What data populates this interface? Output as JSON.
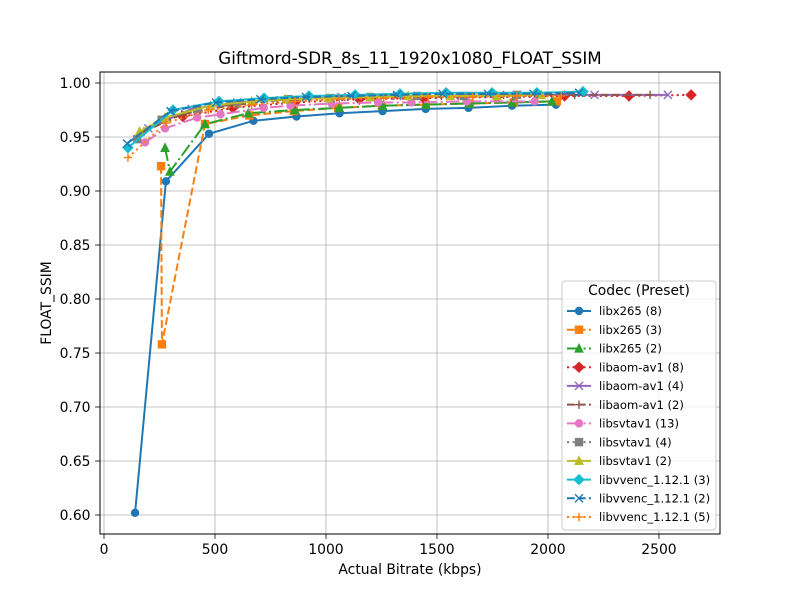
{
  "chart_data": {
    "type": "line",
    "title": "Giftmord-SDR_8s_11_1920x1080_FLOAT_SSIM",
    "xlabel": "Actual Bitrate (kbps)",
    "ylabel": "FLOAT_SSIM",
    "xlim": [
      -18,
      2775
    ],
    "ylim": [
      0.5824,
      1.0102
    ],
    "grid": true,
    "xticks": [
      {
        "value": 0,
        "label": "0"
      },
      {
        "value": 500,
        "label": "500"
      },
      {
        "value": 1000,
        "label": "1000"
      },
      {
        "value": 1500,
        "label": "1500"
      },
      {
        "value": 2000,
        "label": "2000"
      },
      {
        "value": 2500,
        "label": "2500"
      }
    ],
    "yticks": [
      {
        "value": 0.6,
        "label": "0.60"
      },
      {
        "value": 0.65,
        "label": "0.65"
      },
      {
        "value": 0.7,
        "label": "0.70"
      },
      {
        "value": 0.75,
        "label": "0.75"
      },
      {
        "value": 0.8,
        "label": "0.80"
      },
      {
        "value": 0.85,
        "label": "0.85"
      },
      {
        "value": 0.9,
        "label": "0.90"
      },
      {
        "value": 0.95,
        "label": "0.95"
      },
      {
        "value": 1.0,
        "label": "1.00"
      }
    ],
    "legend": {
      "title": "Codec (Preset)",
      "placement": "lower right"
    },
    "series": [
      {
        "name": "libx265 (8)",
        "color": "#1f77b4",
        "linestyle": "solid",
        "marker": "circle",
        "x": [
          140,
          279,
          473,
          673,
          867,
          1061,
          1255,
          1449,
          1642,
          1838,
          2036
        ],
        "y": [
          0.602,
          0.909,
          0.953,
          0.965,
          0.969,
          0.972,
          0.974,
          0.976,
          0.977,
          0.979,
          0.98
        ]
      },
      {
        "name": "libx265 (3)",
        "color": "#ff7f0e",
        "linestyle": "dashed",
        "marker": "square",
        "x": [
          257,
          261,
          455,
          655,
          855,
          1055,
          1252,
          1450,
          1648,
          1846,
          2040
        ],
        "y": [
          0.923,
          0.758,
          0.962,
          0.97,
          0.974,
          0.977,
          0.979,
          0.98,
          0.981,
          0.982,
          0.983
        ]
      },
      {
        "name": "libx265 (2)",
        "color": "#2ca02c",
        "linestyle": "dashdot",
        "marker": "triangle",
        "x": [
          275,
          297,
          455,
          650,
          860,
          1060,
          1255,
          1450,
          1645,
          1840,
          2018
        ],
        "y": [
          0.94,
          0.918,
          0.962,
          0.972,
          0.975,
          0.977,
          0.979,
          0.98,
          0.981,
          0.982,
          0.983
        ]
      },
      {
        "name": "libaom-av1 (8)",
        "color": "#d62728",
        "linestyle": "dotted",
        "marker": "diamond",
        "x": [
          355,
          580,
          860,
          1150,
          1440,
          1770,
          2075,
          2365,
          2645
        ],
        "y": [
          0.969,
          0.977,
          0.982,
          0.985,
          0.986,
          0.987,
          0.988,
          0.988,
          0.989
        ]
      },
      {
        "name": "libaom-av1 (4)",
        "color": "#9467bd",
        "linestyle": "solid",
        "marker": "x",
        "x": [
          200,
          395,
          600,
          830,
          1070,
          1320,
          1580,
          1860,
          2210,
          2540
        ],
        "y": [
          0.958,
          0.976,
          0.982,
          0.985,
          0.987,
          0.988,
          0.988,
          0.989,
          0.989,
          0.989
        ]
      },
      {
        "name": "libaom-av1 (2)",
        "color": "#8c564b",
        "linestyle": "dashed",
        "marker": "plus",
        "x": [
          180,
          350,
          560,
          780,
          1010,
          1260,
          1520,
          1800,
          2120,
          2460
        ],
        "y": [
          0.955,
          0.971,
          0.979,
          0.984,
          0.986,
          0.987,
          0.988,
          0.989,
          0.989,
          0.989
        ]
      },
      {
        "name": "libsvtav1 (13)",
        "color": "#e377c2",
        "linestyle": "dashdot",
        "marker": "circle",
        "x": [
          185,
          275,
          420,
          525,
          720,
          840,
          1025,
          1235,
          1385,
          1635,
          1940
        ],
        "y": [
          0.945,
          0.958,
          0.968,
          0.971,
          0.977,
          0.979,
          0.981,
          0.982,
          0.982,
          0.983,
          0.983
        ]
      },
      {
        "name": "libsvtav1 (4)",
        "color": "#7f7f7f",
        "linestyle": "dotted",
        "marker": "square",
        "x": [
          150,
          260,
          420,
          600,
          830,
          1020,
          1200,
          1410,
          1620,
          1860
        ],
        "y": [
          0.948,
          0.966,
          0.976,
          0.981,
          0.985,
          0.986,
          0.987,
          0.988,
          0.988,
          0.989
        ]
      },
      {
        "name": "libsvtav1 (2)",
        "color": "#bcbd22",
        "linestyle": "solid",
        "marker": "triangle",
        "x": [
          160,
          275,
          480,
          665,
          820,
          1010,
          1200,
          1370,
          1560,
          1770,
          1970
        ],
        "y": [
          0.955,
          0.968,
          0.979,
          0.983,
          0.985,
          0.986,
          0.987,
          0.988,
          0.988,
          0.988,
          0.989
        ]
      },
      {
        "name": "libvvenc_1.12.1 (3)",
        "color": "#17becf",
        "linestyle": "solid",
        "marker": "diamond",
        "x": [
          108,
          311,
          518,
          721,
          923,
          1131,
          1333,
          1541,
          1748,
          1950,
          2158
        ],
        "y": [
          0.94,
          0.975,
          0.983,
          0.986,
          0.988,
          0.989,
          0.99,
          0.991,
          0.991,
          0.991,
          0.992
        ]
      },
      {
        "name": "libvvenc_1.12.1 (2)",
        "color": "#1f77b4",
        "linestyle": "dashed",
        "marker": "x",
        "x": [
          104,
          300,
          505,
          705,
          910,
          1115,
          1320,
          1525,
          1730,
          1935,
          2140
        ],
        "y": [
          0.944,
          0.974,
          0.982,
          0.985,
          0.987,
          0.988,
          0.989,
          0.99,
          0.99,
          0.99,
          0.991
        ]
      },
      {
        "name": "libvvenc_1.12.1 (5)",
        "color": "#ff7f0e",
        "linestyle": "dotted",
        "marker": "plus",
        "x": [
          108,
          280,
          470,
          665,
          860,
          1060,
          1260,
          1460,
          1660,
          1860,
          2060
        ],
        "y": [
          0.931,
          0.963,
          0.975,
          0.98,
          0.983,
          0.985,
          0.986,
          0.987,
          0.987,
          0.988,
          0.988
        ]
      }
    ]
  }
}
